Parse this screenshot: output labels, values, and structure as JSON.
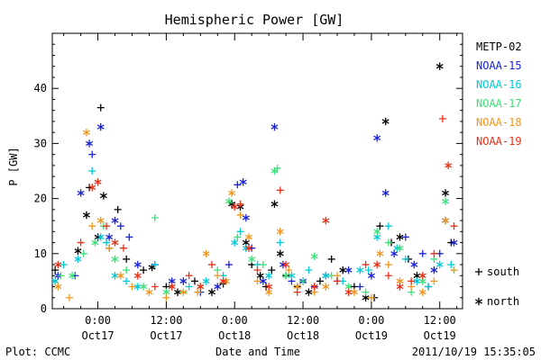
{
  "chart_data": {
    "type": "scatter",
    "title": "Hemispheric Power [GW]",
    "ylabel": "P [GW]",
    "xlabel": "Date and Time",
    "ylim": [
      0,
      50
    ],
    "xlim": [
      -8,
      64
    ],
    "y_ticks": [
      0,
      10,
      20,
      30,
      40
    ],
    "x_ticks": [
      {
        "x": 0,
        "time": "0:00",
        "date": "Oct17"
      },
      {
        "x": 12,
        "time": "12:00",
        "date": "Oct17"
      },
      {
        "x": 24,
        "time": "0:00",
        "date": "Oct18"
      },
      {
        "x": 36,
        "time": "12:00",
        "date": "Oct18"
      },
      {
        "x": 48,
        "time": "0:00",
        "date": "Oct19"
      },
      {
        "x": 60,
        "time": "12:00",
        "date": "Oct19"
      }
    ],
    "grid": false,
    "legend_position": "right",
    "marker_legend": [
      {
        "symbol": "+",
        "label": "south"
      },
      {
        "symbol": "*",
        "label": "north"
      }
    ],
    "series": [
      {
        "name": "METP-02",
        "color": "#000000",
        "points": [
          [
            -7.5,
            7,
            "+"
          ],
          [
            -3.5,
            10.5,
            "*"
          ],
          [
            -2,
            17,
            "*"
          ],
          [
            -1.5,
            22,
            "+"
          ],
          [
            0,
            13,
            "*"
          ],
          [
            0.5,
            36.5,
            "+"
          ],
          [
            1,
            20.5,
            "*"
          ],
          [
            2,
            11,
            "+"
          ],
          [
            3.5,
            18,
            "+"
          ],
          [
            5,
            9,
            "+"
          ],
          [
            8,
            7,
            "+"
          ],
          [
            9.5,
            7.5,
            "*"
          ],
          [
            12,
            4,
            "+"
          ],
          [
            14,
            3,
            "*"
          ],
          [
            17,
            5,
            "+"
          ],
          [
            20,
            3,
            "*"
          ],
          [
            22,
            4.5,
            "+"
          ],
          [
            23.5,
            19,
            "*"
          ],
          [
            25,
            18.5,
            "*"
          ],
          [
            26,
            12,
            "*"
          ],
          [
            27,
            8,
            "+"
          ],
          [
            28.5,
            6,
            "*"
          ],
          [
            29.5,
            4,
            "+"
          ],
          [
            30.5,
            7,
            "+"
          ],
          [
            31,
            19,
            "*"
          ],
          [
            32,
            10,
            "*"
          ],
          [
            33,
            6,
            "+"
          ],
          [
            35,
            4,
            "+"
          ],
          [
            37,
            3,
            "*"
          ],
          [
            39,
            5,
            "+"
          ],
          [
            41,
            9,
            "+"
          ],
          [
            43,
            7,
            "*"
          ],
          [
            45,
            4,
            "+"
          ],
          [
            47,
            2,
            "*"
          ],
          [
            48.5,
            2,
            "+"
          ],
          [
            49.5,
            15,
            "+"
          ],
          [
            50.5,
            34,
            "*"
          ],
          [
            51.5,
            12,
            "+"
          ],
          [
            53,
            13,
            "*"
          ],
          [
            54.5,
            9,
            "+"
          ],
          [
            56,
            6,
            "*"
          ],
          [
            58,
            4,
            "+"
          ],
          [
            60,
            44,
            "*"
          ],
          [
            61,
            21,
            "*"
          ],
          [
            62,
            12,
            "+"
          ]
        ]
      },
      {
        "name": "NOAA-15",
        "color": "#1a23d6",
        "points": [
          [
            -7,
            6,
            "*"
          ],
          [
            -4,
            6,
            "+"
          ],
          [
            -3,
            21,
            "*"
          ],
          [
            -1.5,
            30,
            "*"
          ],
          [
            -1,
            28,
            "+"
          ],
          [
            0.5,
            33,
            "*"
          ],
          [
            2,
            13,
            "*"
          ],
          [
            3,
            16,
            "*"
          ],
          [
            4,
            15,
            "+"
          ],
          [
            5.5,
            13,
            "+"
          ],
          [
            7,
            8,
            "*"
          ],
          [
            10,
            8,
            "+"
          ],
          [
            13,
            5,
            "*"
          ],
          [
            15,
            5,
            "*"
          ],
          [
            18,
            3,
            "+"
          ],
          [
            21,
            4,
            "*"
          ],
          [
            23,
            8,
            "+"
          ],
          [
            24.5,
            22.5,
            "+"
          ],
          [
            25.5,
            23,
            "*"
          ],
          [
            26,
            16.5,
            "*"
          ],
          [
            27,
            11,
            "+"
          ],
          [
            29,
            5,
            "*"
          ],
          [
            31,
            33,
            "*"
          ],
          [
            32.5,
            8,
            "*"
          ],
          [
            34,
            5,
            "+"
          ],
          [
            36,
            5,
            "*"
          ],
          [
            38,
            4,
            "+"
          ],
          [
            40,
            6,
            "*"
          ],
          [
            42,
            5,
            "+"
          ],
          [
            44,
            7,
            "*"
          ],
          [
            46,
            4,
            "+"
          ],
          [
            48,
            6,
            "*"
          ],
          [
            49,
            31,
            "*"
          ],
          [
            50.5,
            21,
            "*"
          ],
          [
            52,
            10,
            "*"
          ],
          [
            54,
            13,
            "+"
          ],
          [
            55.5,
            8,
            "*"
          ],
          [
            57,
            10,
            "+"
          ],
          [
            59,
            7,
            "*"
          ],
          [
            60,
            10,
            "+"
          ],
          [
            61,
            16,
            "*"
          ],
          [
            62.5,
            12,
            "*"
          ]
        ]
      },
      {
        "name": "NOAA-16",
        "color": "#00c8d8",
        "points": [
          [
            -7.5,
            5,
            "*"
          ],
          [
            -6,
            8,
            "+"
          ],
          [
            -3.5,
            9,
            "*"
          ],
          [
            -1,
            25,
            "+"
          ],
          [
            0.5,
            13,
            "*"
          ],
          [
            1.5,
            12,
            "+"
          ],
          [
            3,
            6,
            "*"
          ],
          [
            5,
            5,
            "+"
          ],
          [
            7,
            4,
            "*"
          ],
          [
            10,
            8,
            "+"
          ],
          [
            13,
            4,
            "*"
          ],
          [
            16,
            4,
            "+"
          ],
          [
            19,
            5,
            "*"
          ],
          [
            22,
            6,
            "+"
          ],
          [
            24,
            12,
            "*"
          ],
          [
            25,
            14,
            "+"
          ],
          [
            26,
            11,
            "*"
          ],
          [
            28,
            8,
            "+"
          ],
          [
            30,
            6,
            "*"
          ],
          [
            32,
            12,
            "+"
          ],
          [
            34,
            6,
            "*"
          ],
          [
            37,
            7,
            "+"
          ],
          [
            40,
            6,
            "*"
          ],
          [
            43,
            5,
            "+"
          ],
          [
            46,
            7,
            "*"
          ],
          [
            47.5,
            7,
            "+"
          ],
          [
            49,
            13,
            "*"
          ],
          [
            51,
            15,
            "+"
          ],
          [
            52.5,
            11,
            "*"
          ],
          [
            54,
            9,
            "+"
          ],
          [
            56,
            5,
            "*"
          ],
          [
            58,
            4,
            "+"
          ],
          [
            60,
            8,
            "*"
          ],
          [
            62,
            8,
            "+"
          ]
        ]
      },
      {
        "name": "NOAA-17",
        "color": "#3ee07a",
        "points": [
          [
            -6.5,
            6,
            "+"
          ],
          [
            -4.5,
            6,
            "*"
          ],
          [
            -2.5,
            10,
            "+"
          ],
          [
            -0.5,
            12,
            "*"
          ],
          [
            1,
            15,
            "+"
          ],
          [
            3,
            9,
            "*"
          ],
          [
            5,
            7,
            "+"
          ],
          [
            8,
            4,
            "*"
          ],
          [
            10,
            16.5,
            "+"
          ],
          [
            12,
            3,
            "*"
          ],
          [
            15,
            3,
            "+"
          ],
          [
            18,
            4,
            "*"
          ],
          [
            21,
            7,
            "+"
          ],
          [
            23,
            19.5,
            "*"
          ],
          [
            24.5,
            13,
            "+"
          ],
          [
            27,
            9,
            "*"
          ],
          [
            29,
            8,
            "+"
          ],
          [
            31,
            25,
            "*"
          ],
          [
            31.5,
            25.5,
            "+"
          ],
          [
            33,
            6,
            "*"
          ],
          [
            36,
            5,
            "+"
          ],
          [
            38,
            9.5,
            "*"
          ],
          [
            41,
            6,
            "+"
          ],
          [
            44,
            4,
            "*"
          ],
          [
            47,
            3,
            "+"
          ],
          [
            49,
            14,
            "*"
          ],
          [
            51,
            12,
            "+"
          ],
          [
            53,
            11,
            "*"
          ],
          [
            55,
            3,
            "+"
          ],
          [
            57,
            5,
            "*"
          ],
          [
            59,
            9,
            "+"
          ],
          [
            61,
            19.5,
            "*"
          ],
          [
            62.5,
            7,
            "+"
          ]
        ]
      },
      {
        "name": "NOAA-18",
        "color": "#f0961c",
        "points": [
          [
            -7,
            4,
            "*"
          ],
          [
            -5,
            2,
            "+"
          ],
          [
            -2,
            32,
            "*"
          ],
          [
            -1,
            15,
            "+"
          ],
          [
            0.5,
            16,
            "*"
          ],
          [
            2,
            11,
            "+"
          ],
          [
            4,
            6,
            "*"
          ],
          [
            6,
            4,
            "+"
          ],
          [
            9,
            3,
            "*"
          ],
          [
            12,
            2,
            "+"
          ],
          [
            15,
            3,
            "*"
          ],
          [
            17.5,
            3,
            "+"
          ],
          [
            19,
            10,
            "*"
          ],
          [
            21,
            6,
            "+"
          ],
          [
            22.5,
            5,
            "*"
          ],
          [
            23.5,
            21,
            "*"
          ],
          [
            25,
            17,
            "+"
          ],
          [
            26.5,
            13,
            "*"
          ],
          [
            28,
            5,
            "+"
          ],
          [
            30,
            3,
            "*"
          ],
          [
            32,
            14,
            "*"
          ],
          [
            33.5,
            7,
            "+"
          ],
          [
            35,
            4,
            "*"
          ],
          [
            38,
            3,
            "+"
          ],
          [
            40,
            4,
            "*"
          ],
          [
            42,
            6,
            "+"
          ],
          [
            45,
            3,
            "*"
          ],
          [
            48,
            2,
            "+"
          ],
          [
            49.5,
            10,
            "*"
          ],
          [
            51,
            8,
            "+"
          ],
          [
            53,
            5,
            "*"
          ],
          [
            55,
            4,
            "+"
          ],
          [
            57,
            3,
            "*"
          ],
          [
            59,
            5,
            "+"
          ],
          [
            61,
            16,
            "*"
          ],
          [
            62.5,
            7,
            "+"
          ]
        ]
      },
      {
        "name": "NOAA-19",
        "color": "#e83018",
        "points": [
          [
            -7,
            8,
            "*"
          ],
          [
            -3,
            12,
            "+"
          ],
          [
            -1,
            22,
            "*"
          ],
          [
            0,
            23,
            "*"
          ],
          [
            1.5,
            15,
            "+"
          ],
          [
            3,
            12,
            "*"
          ],
          [
            4.5,
            11,
            "+"
          ],
          [
            7,
            6,
            "*"
          ],
          [
            10,
            4,
            "+"
          ],
          [
            13,
            4,
            "*"
          ],
          [
            16,
            6,
            "+"
          ],
          [
            18,
            4,
            "*"
          ],
          [
            20,
            8,
            "+"
          ],
          [
            22,
            5,
            "*"
          ],
          [
            24,
            18.5,
            "*"
          ],
          [
            25,
            19,
            "+"
          ],
          [
            26.5,
            11,
            "*"
          ],
          [
            28,
            7,
            "+"
          ],
          [
            30,
            4,
            "*"
          ],
          [
            32,
            21.5,
            "+"
          ],
          [
            33,
            8,
            "*"
          ],
          [
            35,
            3,
            "+"
          ],
          [
            38,
            4,
            "*"
          ],
          [
            40,
            16,
            "*"
          ],
          [
            42,
            5,
            "+"
          ],
          [
            44,
            3,
            "*"
          ],
          [
            47,
            8,
            "+"
          ],
          [
            49,
            8,
            "*"
          ],
          [
            51,
            6,
            "+"
          ],
          [
            53,
            4,
            "*"
          ],
          [
            55,
            5,
            "+"
          ],
          [
            57,
            6,
            "*"
          ],
          [
            59,
            10,
            "+"
          ],
          [
            60.5,
            34.5,
            "+"
          ],
          [
            61.5,
            26,
            "*"
          ],
          [
            62.5,
            15,
            "+"
          ]
        ]
      }
    ]
  },
  "footer": {
    "plot_label": "Plot: CCMC",
    "timestamp": "2011/10/19 15:35:05"
  }
}
